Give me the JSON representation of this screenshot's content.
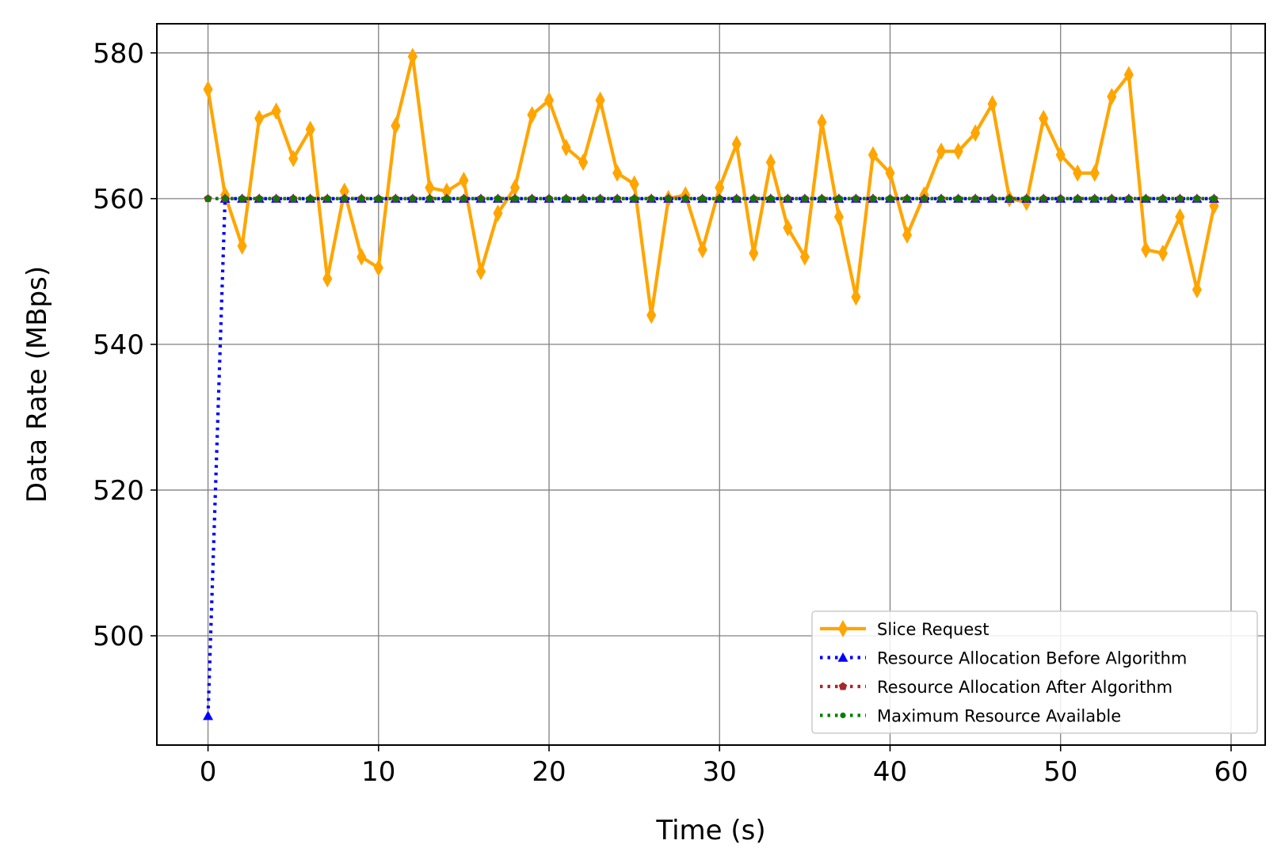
{
  "chart_data": {
    "type": "line",
    "title": "",
    "xlabel": "Time (s)",
    "ylabel": "Data Rate (MBps)",
    "xlim": [
      -3,
      62
    ],
    "ylim": [
      485,
      584
    ],
    "xticks": [
      0,
      10,
      20,
      30,
      40,
      50,
      60
    ],
    "yticks": [
      500,
      520,
      540,
      560,
      580
    ],
    "grid": true,
    "legend_position": "lower right",
    "x": [
      0,
      1,
      2,
      3,
      4,
      5,
      6,
      7,
      8,
      9,
      10,
      11,
      12,
      13,
      14,
      15,
      16,
      17,
      18,
      19,
      20,
      21,
      22,
      23,
      24,
      25,
      26,
      27,
      28,
      29,
      30,
      31,
      32,
      33,
      34,
      35,
      36,
      37,
      38,
      39,
      40,
      41,
      42,
      43,
      44,
      45,
      46,
      47,
      48,
      49,
      50,
      51,
      52,
      53,
      54,
      55,
      56,
      57,
      58,
      59
    ],
    "series": [
      {
        "name": "Slice Request",
        "color": "#FFA500",
        "linestyle": "solid",
        "marker": "thin-diamond",
        "values": [
          575,
          560.5,
          553.5,
          571,
          572,
          565.5,
          569.5,
          549,
          561,
          552,
          550.5,
          570,
          579.5,
          561.5,
          561,
          562.5,
          550,
          558,
          561.5,
          571.5,
          573.5,
          567,
          565,
          573.5,
          563.5,
          562,
          544,
          560,
          560.5,
          553,
          561.5,
          567.5,
          552.5,
          565,
          556,
          552,
          570.5,
          557.5,
          546.5,
          566,
          563.5,
          555,
          560.5,
          566.5,
          566.5,
          569,
          573,
          560,
          559.5,
          571,
          566,
          563.5,
          563.5,
          574,
          577,
          553,
          552.5,
          557.5,
          547.5,
          559
        ]
      },
      {
        "name": "Resource Allocation Before Algorithm",
        "color": "#0000FF",
        "linestyle": "dotted",
        "marker": "triangle",
        "values": [
          489,
          560,
          560,
          560,
          560,
          560,
          560,
          560,
          560,
          560,
          560,
          560,
          560,
          560,
          560,
          560,
          560,
          560,
          560,
          560,
          560,
          560,
          560,
          560,
          560,
          560,
          560,
          560,
          560,
          560,
          560,
          560,
          560,
          560,
          560,
          560,
          560,
          560,
          560,
          560,
          560,
          560,
          560,
          560,
          560,
          560,
          560,
          560,
          560,
          560,
          560,
          560,
          560,
          560,
          560,
          560,
          560,
          560,
          560,
          560
        ]
      },
      {
        "name": "Resource Allocation After Algorithm",
        "color": "#A52A2A",
        "linestyle": "dotted",
        "marker": "pentagon",
        "values": [
          560,
          560,
          560,
          560,
          560,
          560,
          560,
          560,
          560,
          560,
          560,
          560,
          560,
          560,
          560,
          560,
          560,
          560,
          560,
          560,
          560,
          560,
          560,
          560,
          560,
          560,
          560,
          560,
          560,
          560,
          560,
          560,
          560,
          560,
          560,
          560,
          560,
          560,
          560,
          560,
          560,
          560,
          560,
          560,
          560,
          560,
          560,
          560,
          560,
          560,
          560,
          560,
          560,
          560,
          560,
          560,
          560,
          560,
          560,
          560
        ]
      },
      {
        "name": "Maximum Resource Available",
        "color": "#008000",
        "linestyle": "dotted",
        "marker": "dot",
        "values": [
          560,
          560,
          560,
          560,
          560,
          560,
          560,
          560,
          560,
          560,
          560,
          560,
          560,
          560,
          560,
          560,
          560,
          560,
          560,
          560,
          560,
          560,
          560,
          560,
          560,
          560,
          560,
          560,
          560,
          560,
          560,
          560,
          560,
          560,
          560,
          560,
          560,
          560,
          560,
          560,
          560,
          560,
          560,
          560,
          560,
          560,
          560,
          560,
          560,
          560,
          560,
          560,
          560,
          560,
          560,
          560,
          560,
          560,
          560,
          560
        ]
      }
    ]
  }
}
